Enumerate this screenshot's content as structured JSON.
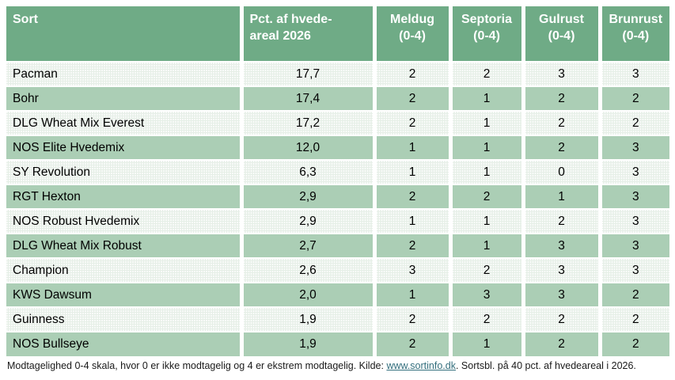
{
  "chart_data": {
    "type": "table",
    "columns": [
      {
        "key": "sort",
        "label": "Sort",
        "lines": [
          "Sort"
        ],
        "align": "left"
      },
      {
        "key": "pct",
        "label": "Pct. af hvedeareal 2026",
        "lines": [
          "Pct. af hvede-",
          "areal 2026"
        ],
        "align": "left"
      },
      {
        "key": "meldug",
        "label": "Meldug (0-4)",
        "lines": [
          "Meldug",
          "(0-4)"
        ],
        "align": "center"
      },
      {
        "key": "septoria",
        "label": "Septoria (0-4)",
        "lines": [
          "Septoria",
          "(0-4)"
        ],
        "align": "center"
      },
      {
        "key": "gulrust",
        "label": "Gulrust (0-4)",
        "lines": [
          "Gulrust",
          "(0-4)"
        ],
        "align": "center"
      },
      {
        "key": "brunrust",
        "label": "Brunrust (0-4)",
        "lines": [
          "Brunrust",
          "(0-4)"
        ],
        "align": "center"
      }
    ],
    "rows": [
      {
        "sort": "Pacman",
        "pct": "17,7",
        "meldug": "2",
        "septoria": "2",
        "gulrust": "3",
        "brunrust": "3"
      },
      {
        "sort": "Bohr",
        "pct": "17,4",
        "meldug": "2",
        "septoria": "1",
        "gulrust": "2",
        "brunrust": "2"
      },
      {
        "sort": "DLG Wheat Mix Everest",
        "pct": "17,2",
        "meldug": "2",
        "septoria": "1",
        "gulrust": "2",
        "brunrust": "2"
      },
      {
        "sort": "NOS Elite Hvedemix",
        "pct": "12,0",
        "meldug": "1",
        "septoria": "1",
        "gulrust": "2",
        "brunrust": "3"
      },
      {
        "sort": "SY Revolution",
        "pct": "6,3",
        "meldug": "1",
        "septoria": "1",
        "gulrust": "0",
        "brunrust": "3"
      },
      {
        "sort": "RGT Hexton",
        "pct": "2,9",
        "meldug": "2",
        "septoria": "2",
        "gulrust": "1",
        "brunrust": "3"
      },
      {
        "sort": "NOS Robust Hvedemix",
        "pct": "2,9",
        "meldug": "1",
        "septoria": "1",
        "gulrust": "2",
        "brunrust": "3"
      },
      {
        "sort": "DLG Wheat Mix Robust",
        "pct": "2,7",
        "meldug": "2",
        "septoria": "1",
        "gulrust": "3",
        "brunrust": "3"
      },
      {
        "sort": "Champion",
        "pct": "2,6",
        "meldug": "3",
        "septoria": "2",
        "gulrust": "3",
        "brunrust": "3"
      },
      {
        "sort": "KWS Dawsum",
        "pct": "2,0",
        "meldug": "1",
        "septoria": "3",
        "gulrust": "3",
        "brunrust": "2"
      },
      {
        "sort": "Guinness",
        "pct": "1,9",
        "meldug": "2",
        "septoria": "2",
        "gulrust": "2",
        "brunrust": "2"
      },
      {
        "sort": "NOS Bullseye",
        "pct": "1,9",
        "meldug": "2",
        "septoria": "1",
        "gulrust": "2",
        "brunrust": "2"
      }
    ]
  },
  "footer": {
    "text_before_link": "Modtagelighed 0-4 skala, hvor 0 er ikke modtagelig og 4 er ekstrem modtagelig. Kilde: ",
    "link_text": "www.sortinfo.dk",
    "text_after_link": ". Sortsbl. på 40 pct. af hvedeareal i 2026."
  },
  "colors": {
    "header_bg": "#6fab86",
    "row_dark": "#abceb5",
    "row_light": "#e6efe7",
    "link": "#35707e"
  }
}
